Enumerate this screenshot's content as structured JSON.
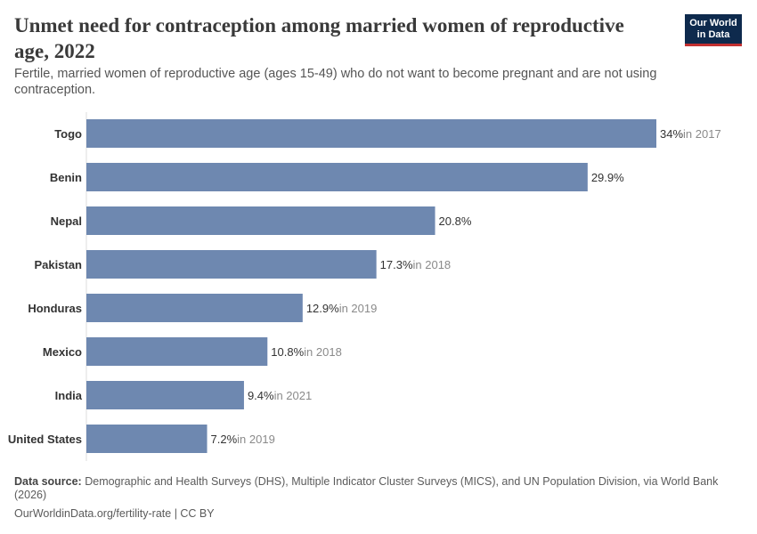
{
  "header": {
    "title": "Unmet need for contraception among married women of reproductive age, 2022",
    "subtitle": "Fertile, married women of reproductive age (ages 15-49) who do not want to become pregnant and are not using contraception."
  },
  "logo": {
    "line1": "Our World",
    "line2": "in Data"
  },
  "footer": {
    "source_label": "Data source:",
    "source_text": "Demographic and Health Surveys (DHS), Multiple Indicator Cluster Surveys (MICS), and UN Population Division, via World Bank (2026)",
    "url": "OurWorldinData.org/fertility-rate | CC BY"
  },
  "colors": {
    "bar": "#6e88b0",
    "axis": "#dddddd"
  },
  "chart_data": {
    "type": "bar",
    "orientation": "horizontal",
    "title": "Unmet need for contraception among married women of reproductive age, 2022",
    "xlabel": "",
    "ylabel": "",
    "xlim": [
      0,
      34
    ],
    "categories": [
      "Togo",
      "Benin",
      "Nepal",
      "Pakistan",
      "Honduras",
      "Mexico",
      "India",
      "United States"
    ],
    "values": [
      34,
      29.9,
      20.8,
      17.3,
      12.9,
      10.8,
      9.4,
      7.2
    ],
    "value_labels": [
      "34%",
      "29.9%",
      "20.8%",
      "17.3%",
      "12.9%",
      "10.8%",
      "9.4%",
      "7.2%"
    ],
    "year_notes": [
      "in 2017",
      "",
      "",
      "in 2018",
      "in 2019",
      "in 2018",
      "in 2021",
      "in 2019"
    ],
    "grid": false
  }
}
